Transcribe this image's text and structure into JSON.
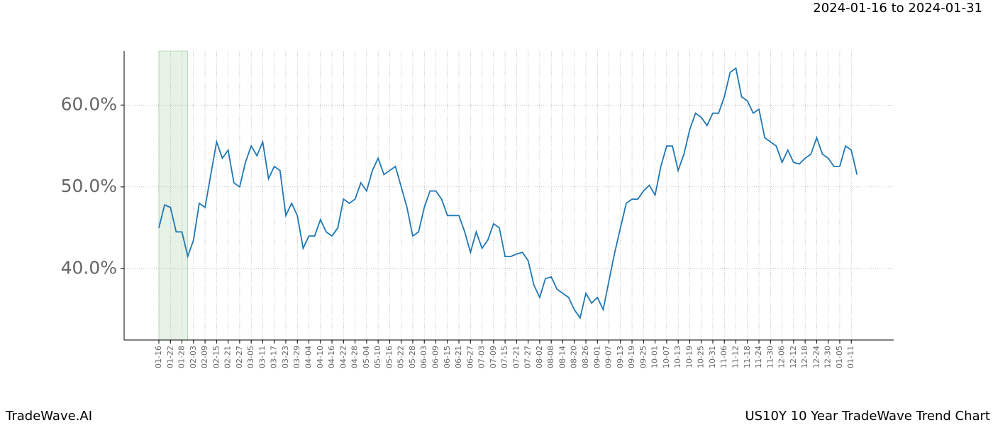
{
  "chart_data": {
    "type": "line",
    "title": "2024-01-16 to 2024-01-31",
    "categories": [
      "01-16",
      null,
      "01-22",
      null,
      "01-28",
      null,
      "02-03",
      null,
      "02-09",
      null,
      "02-15",
      null,
      "02-21",
      null,
      "02-27",
      null,
      "03-05",
      null,
      "03-11",
      null,
      "03-17",
      null,
      "03-23",
      null,
      "03-29",
      null,
      "04-04",
      null,
      "04-10",
      null,
      "04-16",
      null,
      "04-22",
      null,
      "04-28",
      null,
      "05-04",
      null,
      "05-10",
      null,
      "05-16",
      null,
      "05-22",
      null,
      "05-28",
      null,
      "06-03",
      null,
      "06-09",
      null,
      "06-15",
      null,
      "06-21",
      null,
      "06-27",
      null,
      "07-03",
      null,
      "07-09",
      null,
      "07-15",
      null,
      "07-21",
      null,
      "07-27",
      null,
      "08-02",
      null,
      "08-08",
      null,
      "08-14",
      null,
      "08-20",
      null,
      "08-26",
      null,
      "09-01",
      null,
      "09-07",
      null,
      "09-13",
      null,
      "09-19",
      null,
      "09-25",
      null,
      "10-01",
      null,
      "10-07",
      null,
      "10-13",
      null,
      "10-19",
      null,
      "10-25",
      null,
      "10-31",
      null,
      "11-06",
      null,
      "11-12",
      null,
      "11-18",
      null,
      "11-24",
      null,
      "11-30",
      null,
      "12-06",
      null,
      "12-12",
      null,
      "12-18",
      null,
      "12-24",
      null,
      "12-30",
      null,
      "01-05",
      null,
      "01-11",
      null
    ],
    "series": [
      {
        "color": "#1f77b4",
        "values": [
          45.0,
          47.8,
          47.5,
          44.5,
          44.5,
          41.5,
          43.5,
          48.0,
          47.5,
          51.5,
          55.5,
          53.5,
          54.5,
          50.5,
          50.0,
          53.0,
          55.0,
          53.8,
          55.5,
          51.0,
          52.5,
          52.0,
          46.5,
          48.0,
          46.5,
          42.5,
          44.0,
          44.0,
          46.0,
          44.5,
          44.0,
          45.0,
          48.5,
          48.0,
          48.5,
          50.5,
          49.5,
          52.0,
          53.5,
          51.5,
          52.0,
          52.5,
          50.0,
          47.5,
          44.0,
          44.5,
          47.5,
          49.5,
          49.5,
          48.5,
          46.5,
          46.5,
          46.5,
          44.5,
          42.0,
          44.5,
          42.5,
          43.5,
          45.5,
          45.0,
          41.5,
          41.5,
          41.8,
          42.0,
          41.0,
          38.0,
          36.5,
          38.8,
          39.0,
          37.5,
          37.0,
          36.5,
          35.0,
          34.0,
          37.0,
          35.8,
          36.5,
          35.0,
          38.5,
          42.0,
          45.0,
          48.0,
          48.5,
          48.5,
          49.5,
          50.2,
          49.0,
          52.5,
          55.0,
          55.0,
          52.0,
          54.0,
          57.0,
          59.0,
          58.5,
          57.5,
          59.0,
          59.0,
          61.0,
          64.0,
          64.5,
          61.0,
          60.5,
          59.0,
          59.5,
          56.0,
          55.5,
          55.0,
          53.0,
          54.5,
          53.0,
          52.8,
          53.5,
          54.0,
          56.0,
          54.0,
          53.5,
          52.5,
          52.5,
          55.0,
          54.5,
          51.5
        ]
      }
    ],
    "ylim": [
      31.3,
      66.6
    ],
    "yticks": [
      {
        "value": 40,
        "label": "40.0%"
      },
      {
        "value": 50,
        "label": "50.0%"
      },
      {
        "value": 60,
        "label": "60.0%"
      }
    ],
    "grid": true,
    "shaded_span": {
      "start_index": 0,
      "end_index": 5,
      "color": "#e6f2e6"
    }
  },
  "footer": {
    "left": "TradeWave.AI",
    "right": "US10Y 10 Year TradeWave Trend Chart"
  }
}
